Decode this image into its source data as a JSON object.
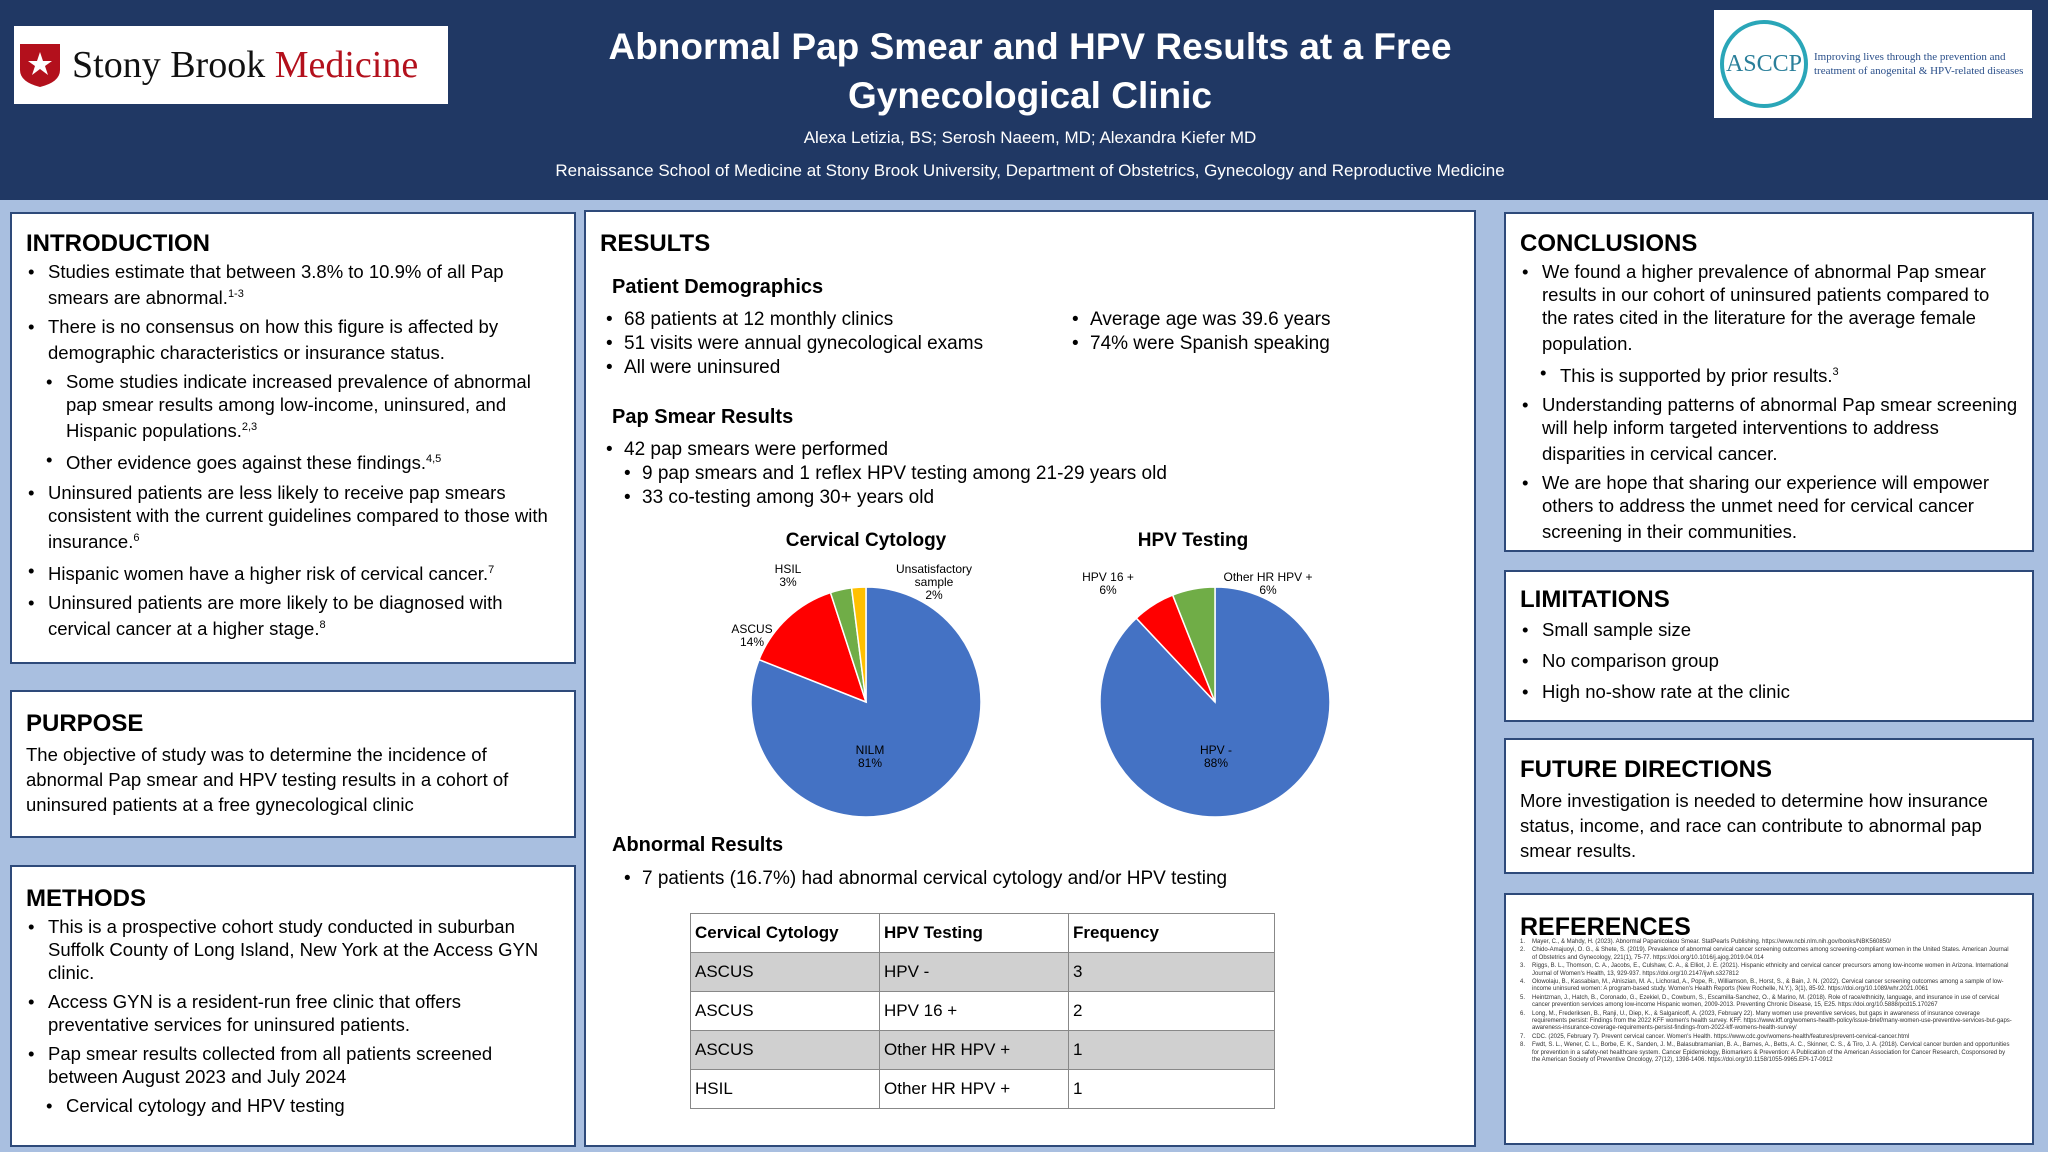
{
  "header": {
    "title": "Abnormal Pap Smear and HPV Results at a Free Gynecological Clinic",
    "authors": "Alexa Letizia, BS; Serosh Naeem, MD; Alexandra Kiefer MD",
    "affiliation": "Renaissance School of Medicine at Stony Brook University, Department of Obstetrics, Gynecology and Reproductive Medicine",
    "logo_left_a": "Stony Brook",
    "logo_left_b": "Medicine",
    "logo_right_name": "ASCCP",
    "logo_right_tagline": "Improving lives through the prevention and treatment of anogenital & HPV-related diseases"
  },
  "introduction": {
    "heading": "INTRODUCTION",
    "items": [
      {
        "level": 1,
        "text": "Studies estimate that between 3.8% to 10.9% of all Pap smears are abnormal.",
        "sup": "1-3"
      },
      {
        "level": 1,
        "text": "There is no consensus on how this figure is affected by demographic characteristics or insurance status.",
        "sup": ""
      },
      {
        "level": 2,
        "text": "Some studies indicate increased prevalence of abnormal pap smear results among low-income, uninsured, and Hispanic populations.",
        "sup": "2,3"
      },
      {
        "level": 2,
        "text": "Other evidence goes against these findings.",
        "sup": "4,5"
      },
      {
        "level": 1,
        "text": "Uninsured patients are less likely to receive pap smears consistent with the current guidelines compared to those with insurance.",
        "sup": "6"
      },
      {
        "level": 1,
        "text": "Hispanic women have a higher risk of cervical cancer.",
        "sup": "7"
      },
      {
        "level": 1,
        "text": "Uninsured patients are more likely to be diagnosed with cervical cancer at a higher stage.",
        "sup": "8"
      }
    ]
  },
  "purpose": {
    "heading": "PURPOSE",
    "text": "The objective of study was to determine the incidence of abnormal Pap smear and HPV testing results in a cohort of uninsured patients at a free gynecological clinic"
  },
  "methods": {
    "heading": "METHODS",
    "items": [
      {
        "level": 1,
        "text": "This is a prospective cohort study conducted in suburban Suffolk County of Long Island, New York at the Access GYN clinic."
      },
      {
        "level": 1,
        "text": "Access GYN is a resident-run free clinic that offers preventative services for uninsured patients."
      },
      {
        "level": 1,
        "text": "Pap smear results collected from all patients screened between August 2023 and July 2024"
      },
      {
        "level": 2,
        "text": "Cervical cytology and HPV testing"
      }
    ]
  },
  "results": {
    "heading": "RESULTS",
    "demographics_heading": "Patient Demographics",
    "demographics_left": [
      "68 patients at 12 monthly clinics",
      "51 visits were annual gynecological exams",
      "All were uninsured"
    ],
    "demographics_right": [
      "Average age was 39.6 years",
      "74% were Spanish speaking"
    ],
    "pap_heading": "Pap Smear Results",
    "pap_items": [
      {
        "level": 1,
        "text": "42 pap smears were performed"
      },
      {
        "level": 2,
        "text": "9 pap smears and 1 reflex HPV testing among 21-29 years old"
      },
      {
        "level": 2,
        "text": "33 co-testing among 30+ years old"
      }
    ],
    "abnormal_heading": "Abnormal Results",
    "abnormal_item": "7 patients (16.7%) had abnormal cervical cytology and/or HPV testing",
    "table": {
      "headers": [
        "Cervical Cytology",
        "HPV Testing",
        "Frequency"
      ],
      "rows": [
        [
          "ASCUS",
          "HPV -",
          "3"
        ],
        [
          "ASCUS",
          "HPV 16 +",
          "2"
        ],
        [
          "ASCUS",
          "Other HR HPV +",
          "1"
        ],
        [
          "HSIL",
          "Other HR HPV +",
          "1"
        ]
      ]
    }
  },
  "chart_data": [
    {
      "type": "pie",
      "title": "Cervical Cytology",
      "slices": [
        {
          "name": "NILM",
          "label": "81%",
          "value": 81,
          "color": "#4472c4"
        },
        {
          "name": "ASCUS",
          "label": "14%",
          "value": 14,
          "color": "#ff0000"
        },
        {
          "name": "HSIL",
          "label": "3%",
          "value": 3,
          "color": "#70ad47"
        },
        {
          "name": "Unsatisfactory sample",
          "label": "2%",
          "value": 2,
          "color": "#ffc000"
        }
      ]
    },
    {
      "type": "pie",
      "title": "HPV Testing",
      "slices": [
        {
          "name": "HPV -",
          "label": "88%",
          "value": 88,
          "color": "#4472c4"
        },
        {
          "name": "HPV 16 +",
          "label": "6%",
          "value": 6,
          "color": "#ff0000"
        },
        {
          "name": "Other HR HPV +",
          "label": "6%",
          "value": 6,
          "color": "#70ad47"
        }
      ]
    }
  ],
  "conclusions": {
    "heading": "CONCLUSIONS",
    "items": [
      {
        "level": 1,
        "text": "We found a higher prevalence of abnormal Pap smear results in our cohort of uninsured patients compared to the rates cited in the literature for the average female population.",
        "sup": ""
      },
      {
        "level": 2,
        "text": "This is supported by prior results.",
        "sup": "3"
      },
      {
        "level": 1,
        "text": "Understanding patterns of abnormal Pap smear screening will help inform targeted interventions to address disparities in cervical cancer.",
        "sup": ""
      },
      {
        "level": 1,
        "text": "We are hope that sharing our experience will empower others to address the unmet need for cervical cancer screening in their communities.",
        "sup": ""
      }
    ]
  },
  "limitations": {
    "heading": "LIMITATIONS",
    "items": [
      "Small sample size",
      "No comparison group",
      "High no-show rate at the clinic"
    ]
  },
  "future": {
    "heading": "FUTURE DIRECTIONS",
    "text": "More investigation is needed to determine how insurance status, income, and race can contribute to abnormal pap smear results."
  },
  "references": {
    "heading": "REFERENCES",
    "items": [
      "Mayer, C., & Mahdy, H. (2023). Abnormal Papanicolaou Smear. StatPearls Publishing. https://www.ncbi.nlm.nih.gov/books/NBK560850/",
      "Chido-Amajuoyi, O. G., & Shete, S. (2019). Prevalence of abnormal cervical cancer screening outcomes among screening-compliant women in the United States. American Journal of Obstetrics and Gynecology, 221(1), 75-77. https://doi.org/10.1016/j.ajog.2019.04.014",
      "Riggs, B. L., Thomson, C. A., Jacobs, E., Culshaw, C. A., & Elliot, J. E. (2021). Hispanic ethnicity and cervical cancer precursors among low-income women in Arizona. International Journal of Women's Health, 13, 929-937. https://doi.org/10.2147/ijwh.s327812",
      "Olowolaju, B., Kassabian, M., Alniszian, M. A., Lichorad, A., Pope, R., Williamson, B., Horst, S., & Bain, J. N. (2022). Cervical cancer screening outcomes among a sample of low-income uninsured women: A program-based study. Women's Health Reports (New Rochelle, N.Y.), 3(1), 85-92. https://doi.org/10.1089/whr.2021.0061",
      "Heintzman, J., Hatch, B., Coronado, G., Ezekiel, D., Cowburn, S., Escamilla-Sanchez, O., & Marino, M. (2018). Role of race/ethnicity, language, and insurance in use of cervical cancer prevention services among low-income Hispanic women, 2009-2013. Preventing Chronic Disease, 15, E25. https://doi.org/10.5888/pcd15.170267",
      "Long, M., Frederiksen, B., Ranji, U., Diep, K., & Salganicoff, A. (2023, February 22). Many women use preventive services, but gaps in awareness of insurance coverage requirements persist: Findings from the 2022 KFF women's health survey. KFF. https://www.kff.org/womens-health-policy/issue-brief/many-women-use-preventive-services-but-gaps-awareness-insurance-coverage-requirements-persist-findings-from-2022-kff-womens-health-survey/",
      "CDC. (2025, February 7). Prevent cervical cancer. Women's Health. https://www.cdc.gov/womens-health/features/prevent-cervical-cancer.html",
      "Fwdt, S. L., Wener, C. L., Borbe, E. K., Sanden, J. M., Balasubramanian, B. A., Barnes, A., Betts, A. C., Skinner, C. S., & Tiro, J. A. (2018). Cervical cancer burden and opportunities for prevention in a safety-net healthcare system. Cancer Epidemiology, Biomarkers & Prevention: A Publication of the American Association for Cancer Research, Cosponsored by the American Society of Preventive Oncology, 27(12), 1398-1406. https://doi.org/10.1158/1055-9965.EPI-17-0912"
    ]
  }
}
